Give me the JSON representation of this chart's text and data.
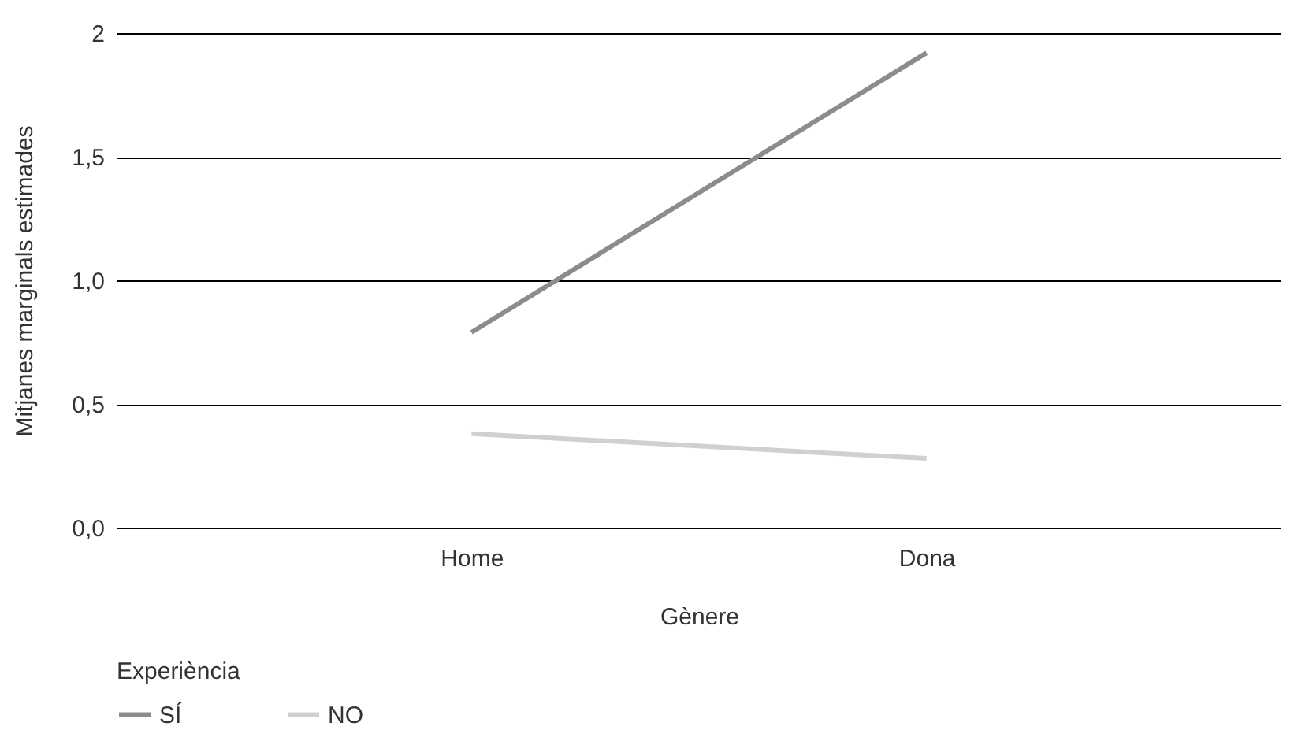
{
  "chart_data": {
    "type": "line",
    "xlabel": "Gènere",
    "ylabel": "Mitjanes marginals estimades",
    "legend_title": "Experiència",
    "categories": [
      "Home",
      "Dona"
    ],
    "series": [
      {
        "name": "SÍ",
        "color": "#8c8c8c",
        "values": [
          0.79,
          1.92
        ]
      },
      {
        "name": "NO",
        "color": "#d0d0d0",
        "values": [
          0.38,
          0.28
        ]
      }
    ],
    "ylim": [
      0,
      2
    ],
    "yticks": [
      {
        "value": 0,
        "label": "0,0"
      },
      {
        "value": 0.5,
        "label": "0,5"
      },
      {
        "value": 1,
        "label": "1,0"
      },
      {
        "value": 1.5,
        "label": "1,5"
      },
      2
    ],
    "grid": "y",
    "legend": "bottom left",
    "marker": "none",
    "line_style": "solid"
  }
}
